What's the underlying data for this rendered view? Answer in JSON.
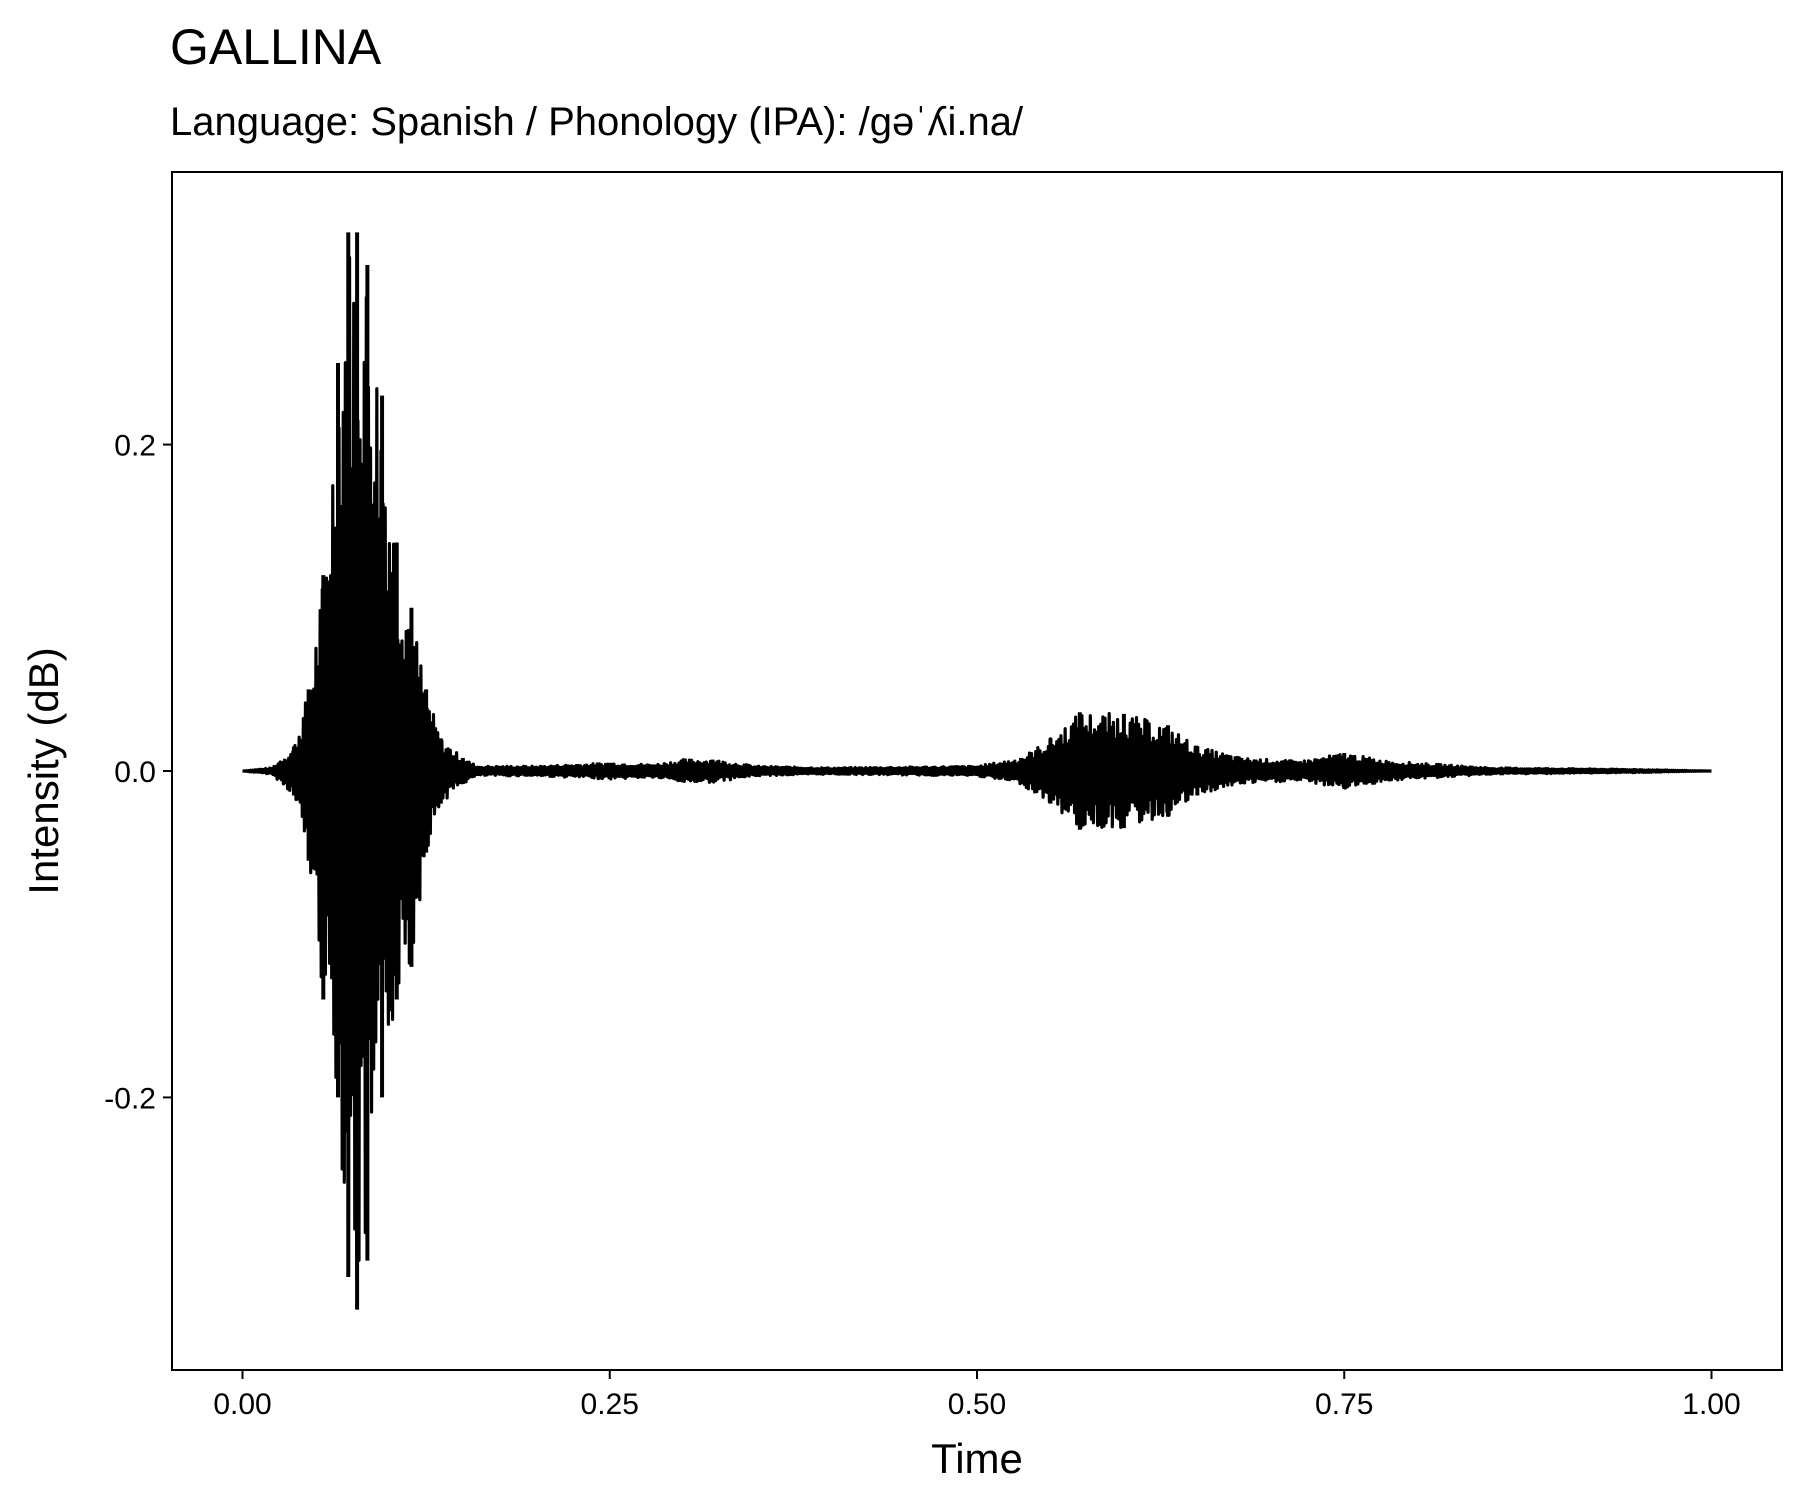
{
  "chart_data": {
    "type": "line",
    "title": "GALLINA",
    "subtitle": "Language: Spanish / Phonology (IPA): /ɡəˈʎi.na/",
    "xlabel": "Time",
    "ylabel": "Intensity (dB)",
    "xlim": [
      -0.048,
      1.048
    ],
    "ylim": [
      -0.367,
      0.367
    ],
    "x_ticks": [
      {
        "value": 0.0,
        "label": "0.00"
      },
      {
        "value": 0.25,
        "label": "0.25"
      },
      {
        "value": 0.5,
        "label": "0.50"
      },
      {
        "value": 0.75,
        "label": "0.75"
      },
      {
        "value": 1.0,
        "label": "1.00"
      }
    ],
    "y_ticks": [
      {
        "value": -0.2,
        "label": "-0.2"
      },
      {
        "value": 0.0,
        "label": "0.0"
      },
      {
        "value": 0.2,
        "label": "0.2"
      }
    ],
    "grid": false,
    "series": [
      {
        "color": "#000000",
        "envelope": {
          "time": [
            0.0,
            0.02,
            0.035,
            0.045,
            0.055,
            0.065,
            0.072,
            0.078,
            0.085,
            0.095,
            0.105,
            0.115,
            0.125,
            0.135,
            0.15,
            0.16,
            0.2,
            0.25,
            0.28,
            0.3,
            0.32,
            0.35,
            0.4,
            0.5,
            0.53,
            0.55,
            0.57,
            0.6,
            0.63,
            0.65,
            0.68,
            0.72,
            0.75,
            0.78,
            0.85,
            0.95,
            1.0
          ],
          "upper": [
            0.0,
            0.002,
            0.015,
            0.05,
            0.12,
            0.25,
            0.33,
            0.33,
            0.31,
            0.23,
            0.14,
            0.1,
            0.05,
            0.02,
            0.008,
            0.003,
            0.003,
            0.005,
            0.004,
            0.007,
            0.007,
            0.003,
            0.002,
            0.003,
            0.008,
            0.02,
            0.036,
            0.035,
            0.028,
            0.015,
            0.008,
            0.006,
            0.011,
            0.006,
            0.002,
            0.001,
            0.0
          ],
          "lower": [
            0.0,
            -0.002,
            -0.015,
            -0.055,
            -0.14,
            -0.2,
            -0.31,
            -0.33,
            -0.3,
            -0.2,
            -0.14,
            -0.12,
            -0.05,
            -0.02,
            -0.008,
            -0.003,
            -0.003,
            -0.005,
            -0.004,
            -0.007,
            -0.007,
            -0.003,
            -0.002,
            -0.003,
            -0.008,
            -0.02,
            -0.036,
            -0.035,
            -0.028,
            -0.015,
            -0.008,
            -0.006,
            -0.011,
            -0.006,
            -0.002,
            -0.001,
            0.0
          ]
        }
      }
    ]
  }
}
